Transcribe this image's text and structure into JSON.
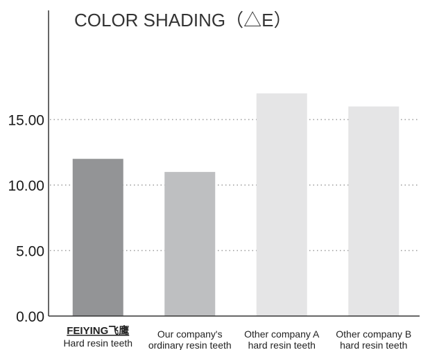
{
  "chart_data": {
    "type": "bar",
    "title": "COLOR SHADING（△E）",
    "ylim": [
      0,
      20
    ],
    "yticks": [
      "0.00",
      "5.00",
      "10.00",
      "15.00"
    ],
    "grid": true,
    "categories": [
      {
        "brand": "FEIYING飞鹰",
        "lines": [
          "Hard resin teeth"
        ]
      },
      {
        "brand": "",
        "lines": [
          "Our company's",
          "ordinary resin teeth"
        ]
      },
      {
        "brand": "",
        "lines": [
          "Other company A",
          "hard resin teeth"
        ]
      },
      {
        "brand": "",
        "lines": [
          "Other company B",
          "hard resin teeth"
        ]
      }
    ],
    "values": [
      12,
      11,
      17,
      16
    ],
    "colors": [
      "#939496",
      "#bebfc1",
      "#e5e5e6",
      "#e5e5e6"
    ]
  }
}
